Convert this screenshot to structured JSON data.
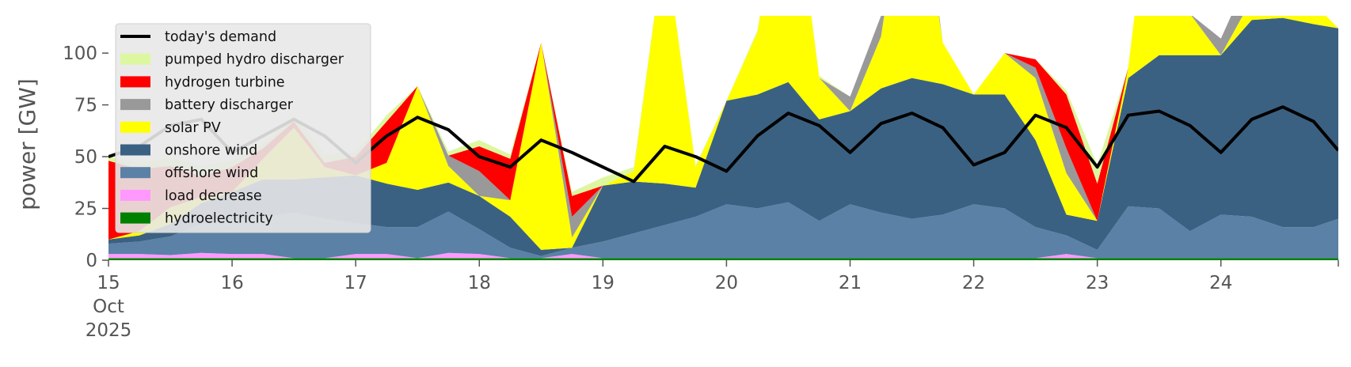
{
  "chart_data": {
    "type": "area",
    "title": "",
    "xlabel": "",
    "ylabel": "power [GW]",
    "x_tick_labels": [
      "15",
      "16",
      "17",
      "18",
      "19",
      "20",
      "21",
      "22",
      "23",
      "24"
    ],
    "x_tick_values": [
      15,
      16,
      17,
      18,
      19,
      20,
      21,
      22,
      23,
      24
    ],
    "x_date_label": [
      "Oct",
      "2025"
    ],
    "xlim": [
      15,
      24.95
    ],
    "y_tick_labels": [
      "0",
      "25",
      "50",
      "75",
      "100"
    ],
    "y_tick_values": [
      0,
      25,
      50,
      75,
      100
    ],
    "ylim": [
      0,
      118
    ],
    "grid": false,
    "legend_position": "top-left",
    "stack_order": [
      "hydroelectricity",
      "load decrease",
      "offshore wind",
      "onshore wind",
      "solar PV",
      "battery discharger",
      "hydrogen turbine",
      "pumped hydro discharger"
    ],
    "x": [
      15.0,
      15.25,
      15.5,
      15.75,
      16.0,
      16.25,
      16.5,
      16.75,
      17.0,
      17.25,
      17.5,
      17.75,
      18.0,
      18.25,
      18.5,
      18.75,
      19.0,
      19.25,
      19.5,
      19.75,
      20.0,
      20.25,
      20.5,
      20.75,
      21.0,
      21.25,
      21.5,
      21.75,
      22.0,
      22.25,
      22.5,
      22.75,
      23.0,
      23.25,
      23.5,
      23.75,
      24.0,
      24.25,
      24.5,
      24.75,
      24.95
    ],
    "series": [
      {
        "name": "hydroelectricity",
        "color": "#008000",
        "values": [
          1,
          1,
          1,
          1,
          1,
          1,
          1,
          1,
          1,
          1,
          1,
          1,
          1,
          1,
          1,
          1,
          1,
          1,
          1,
          1,
          1,
          1,
          1,
          1,
          1,
          1,
          1,
          1,
          1,
          1,
          1,
          1,
          1,
          1,
          1,
          1,
          1,
          1,
          1,
          1,
          1
        ]
      },
      {
        "name": "load decrease",
        "color": "#ff99ff",
        "values": [
          2,
          2,
          1.5,
          2.5,
          2,
          2,
          0,
          0,
          2,
          2,
          0,
          2.5,
          2,
          0,
          0,
          2,
          0,
          0,
          0,
          0,
          0,
          0,
          0,
          0,
          0,
          0,
          0,
          0,
          0,
          0,
          0,
          2,
          0,
          0,
          0,
          0,
          0,
          0,
          0,
          0,
          0
        ]
      },
      {
        "name": "offshore wind",
        "color": "#5b81a6",
        "values": [
          5,
          6,
          9,
          14,
          16,
          18,
          22,
          19,
          15,
          13,
          15,
          20,
          12,
          5,
          1,
          3,
          8,
          12,
          16,
          20,
          26,
          24,
          27,
          18,
          26,
          22,
          19,
          21,
          26,
          24,
          15,
          9,
          4,
          25,
          24,
          13,
          21,
          20,
          15,
          15,
          19
        ]
      },
      {
        "name": "onshore wind",
        "color": "#3b6182",
        "values": [
          2,
          3,
          6,
          10,
          14,
          18,
          16,
          20,
          23,
          21,
          18,
          14,
          16,
          15,
          3,
          0,
          27,
          25,
          20,
          14,
          50,
          55,
          58,
          49,
          45,
          60,
          68,
          63,
          53,
          55,
          42,
          10,
          14,
          62,
          74,
          85,
          77,
          95,
          101,
          98,
          92
        ]
      },
      {
        "name": "solar PV",
        "color": "#ffff00",
        "values": [
          0,
          2,
          8,
          3,
          0,
          10,
          25,
          5,
          0,
          10,
          50,
          8,
          0,
          8,
          100,
          5,
          0,
          5,
          118,
          10,
          0,
          30,
          118,
          20,
          0,
          25,
          118,
          20,
          0,
          20,
          30,
          20,
          0,
          5,
          118,
          20,
          0,
          10,
          118,
          10,
          0
        ]
      },
      {
        "name": "battery discharger",
        "color": "#999999",
        "values": [
          0,
          0,
          0,
          0,
          0,
          0,
          0,
          0,
          0,
          0,
          0,
          5,
          12,
          0,
          0,
          10,
          0,
          0,
          0,
          0,
          0,
          0,
          0,
          0,
          7,
          10,
          14,
          0,
          0,
          0,
          5,
          12,
          0,
          0,
          0,
          0,
          8,
          14,
          0,
          0,
          0
        ]
      },
      {
        "name": "hydrogen turbine",
        "color": "#ff0000",
        "values": [
          38,
          30,
          20,
          10,
          12,
          5,
          3,
          2,
          9,
          20,
          0,
          0,
          12,
          20,
          0,
          10,
          0,
          0,
          0,
          0,
          0,
          0,
          0,
          0,
          0,
          0,
          0,
          0,
          0,
          0,
          4,
          26,
          18,
          0,
          0,
          0,
          0,
          0,
          0,
          0,
          0
        ]
      },
      {
        "name": "pumped hydro discharger",
        "color": "#ddf7a0",
        "values": [
          2,
          3,
          4,
          5,
          3,
          2,
          3,
          4,
          2,
          3,
          0,
          2,
          3,
          2,
          0,
          2,
          4,
          2,
          0,
          1,
          0,
          1,
          0,
          1,
          0,
          0,
          0,
          0,
          0,
          0,
          0,
          2,
          9,
          0,
          0,
          0,
          0,
          0,
          0,
          0,
          0
        ]
      }
    ],
    "demand": {
      "name": "today's demand",
      "color": "#000000",
      "values": [
        50,
        55,
        65,
        68,
        52,
        60,
        68,
        60,
        47,
        60,
        69,
        63,
        50,
        45,
        58,
        52,
        45,
        38,
        55,
        50,
        43,
        60,
        71,
        65,
        52,
        66,
        71,
        64,
        46,
        52,
        70,
        64,
        45,
        70,
        72,
        65,
        52,
        68,
        74,
        67,
        53
      ]
    },
    "legend": [
      {
        "label": "today's demand",
        "color": "#000000",
        "kind": "line"
      },
      {
        "label": "pumped hydro discharger",
        "color": "#ddf7a0",
        "kind": "patch"
      },
      {
        "label": "hydrogen turbine",
        "color": "#ff0000",
        "kind": "patch"
      },
      {
        "label": "battery discharger",
        "color": "#999999",
        "kind": "patch"
      },
      {
        "label": "solar PV",
        "color": "#ffff00",
        "kind": "patch"
      },
      {
        "label": "onshore wind",
        "color": "#3b6182",
        "kind": "patch"
      },
      {
        "label": "offshore wind",
        "color": "#5b81a6",
        "kind": "patch"
      },
      {
        "label": "load decrease",
        "color": "#ff99ff",
        "kind": "patch"
      },
      {
        "label": "hydroelectricity",
        "color": "#008000",
        "kind": "patch"
      }
    ]
  }
}
